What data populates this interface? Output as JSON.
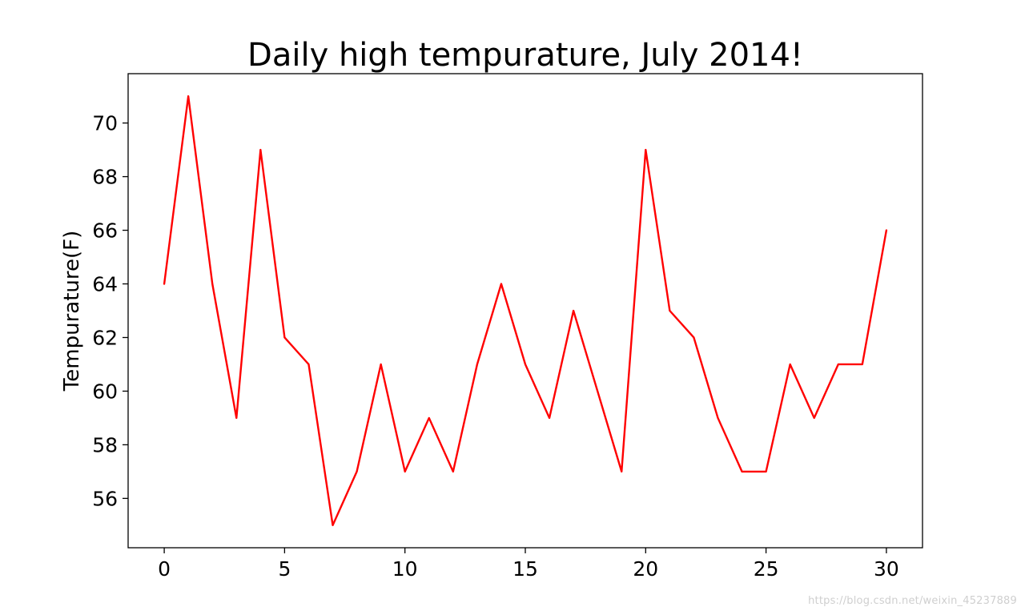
{
  "chart_data": {
    "type": "line",
    "title": "Daily high tempurature, July 2014!",
    "xlabel": "",
    "ylabel": "Tempurature(F)",
    "x": [
      0,
      1,
      2,
      3,
      4,
      5,
      6,
      7,
      8,
      9,
      10,
      11,
      12,
      13,
      14,
      15,
      16,
      17,
      18,
      19,
      20,
      21,
      22,
      23,
      24,
      25,
      26,
      27,
      28,
      29,
      30
    ],
    "series": [
      {
        "values": [
          64,
          71,
          64,
          59,
          69,
          62,
          61,
          55,
          57,
          61,
          57,
          59,
          57,
          61,
          64,
          61,
          59,
          63,
          60,
          57,
          69,
          63,
          62,
          59,
          57,
          57,
          61,
          59,
          61,
          61,
          66
        ],
        "color": "#ff0000"
      }
    ],
    "xlim": [
      -1.5,
      31.5
    ],
    "ylim": [
      54.16,
      71.84
    ],
    "xticks": [
      0,
      5,
      10,
      15,
      20,
      25,
      30
    ],
    "yticks": [
      56,
      58,
      60,
      62,
      64,
      66,
      68,
      70
    ],
    "grid": false,
    "legend": "none"
  },
  "watermark": "https://blog.csdn.net/weixin_45237889"
}
